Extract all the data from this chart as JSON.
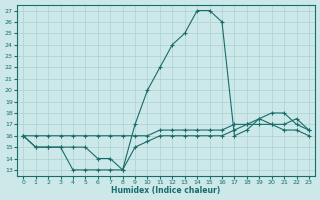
{
  "xlabel": "Humidex (Indice chaleur)",
  "xlim": [
    -0.5,
    23.5
  ],
  "ylim": [
    12.5,
    27.5
  ],
  "xticks": [
    0,
    1,
    2,
    3,
    4,
    5,
    6,
    7,
    8,
    9,
    10,
    11,
    12,
    13,
    14,
    15,
    16,
    17,
    18,
    19,
    20,
    21,
    22,
    23
  ],
  "yticks": [
    13,
    14,
    15,
    16,
    17,
    18,
    19,
    20,
    21,
    22,
    23,
    24,
    25,
    26,
    27
  ],
  "bg_color": "#cce8e8",
  "grid_color": "#b0d4d4",
  "line_color": "#1a6b6b",
  "curves": [
    {
      "x": [
        0,
        1,
        2,
        3,
        4,
        5,
        6,
        7,
        8,
        9,
        10,
        11,
        12,
        13,
        14,
        15,
        16,
        17,
        18,
        19,
        20,
        21,
        22,
        23
      ],
      "y": [
        16,
        15,
        15,
        15,
        13,
        13,
        13,
        13,
        13,
        17,
        20,
        22,
        24,
        25,
        27,
        27,
        26,
        16,
        16.5,
        17.5,
        17,
        17,
        17.5,
        16.5
      ]
    },
    {
      "x": [
        0,
        1,
        2,
        3,
        4,
        5,
        6,
        7,
        8,
        9,
        10,
        11,
        12,
        13,
        14,
        15,
        16,
        17,
        18,
        19,
        20,
        21,
        22,
        23
      ],
      "y": [
        16,
        15,
        15,
        15,
        15,
        15,
        14,
        14,
        13,
        15,
        15.5,
        16,
        16,
        16,
        16,
        16,
        16,
        16.5,
        17,
        17,
        17,
        16.5,
        16.5,
        16
      ]
    },
    {
      "x": [
        0,
        1,
        2,
        3,
        4,
        5,
        6,
        7,
        8,
        9,
        10,
        11,
        12,
        13,
        14,
        15,
        16,
        17,
        18,
        19,
        20,
        21,
        22,
        23
      ],
      "y": [
        16,
        16,
        16,
        16,
        16,
        16,
        16,
        16,
        16,
        16,
        16,
        16.5,
        16.5,
        16.5,
        16.5,
        16.5,
        16.5,
        17,
        17,
        17.5,
        18,
        18,
        17,
        16.5
      ]
    }
  ]
}
